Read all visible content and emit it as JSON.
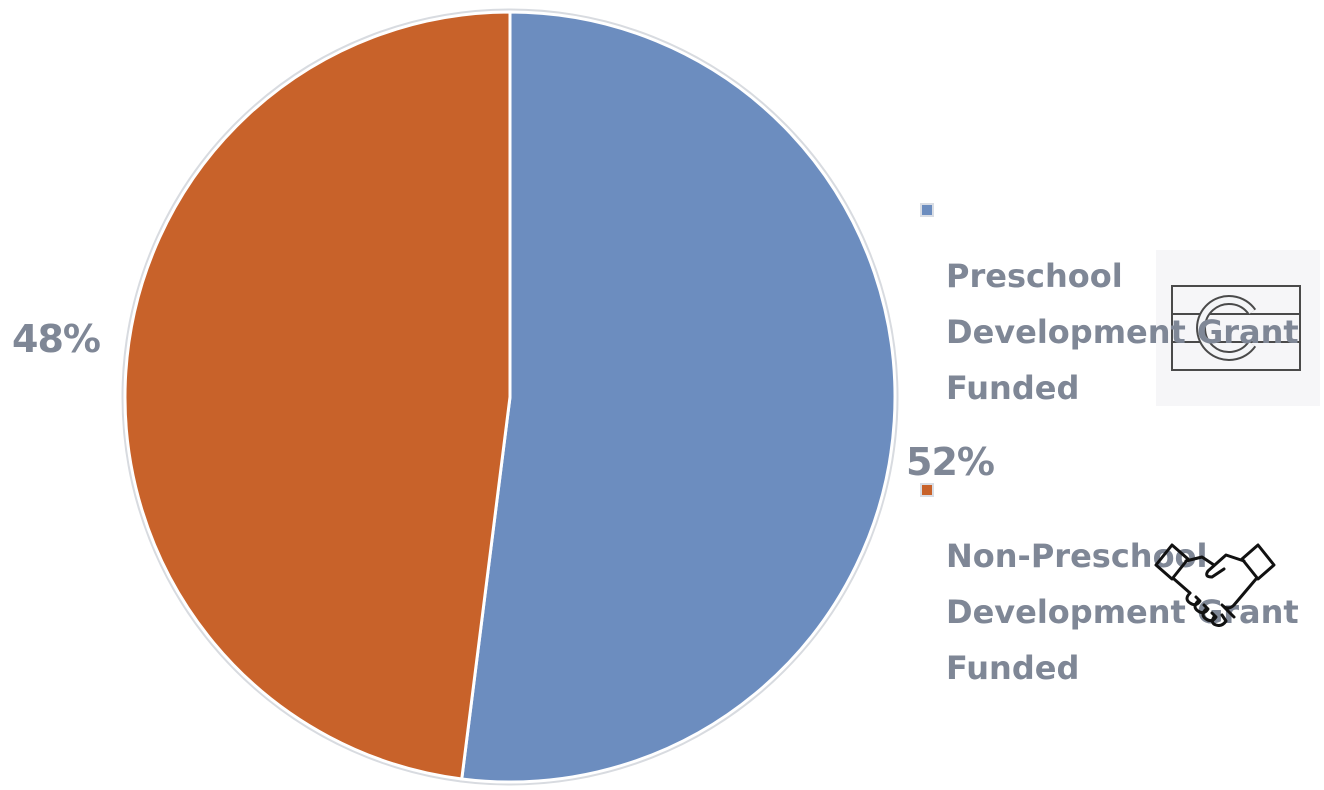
{
  "chart_data": {
    "type": "pie",
    "title": "",
    "series": [
      {
        "name": "Preschool Development Grant Funded",
        "value": 52,
        "label": "52%",
        "color": "#6c8dbf"
      },
      {
        "name": "Non-Preschool Development Grant Funded",
        "value": 48,
        "label": "48%",
        "color": "#c8622a"
      }
    ],
    "start_angle": "12 o'clock",
    "direction": "clockwise",
    "legend_position": "right"
  },
  "legend": {
    "entries": [
      {
        "text": "Preschool\nDevelopment Grant\nFunded"
      },
      {
        "text": "Non-Preschool\nDevelopment Grant\nFunded"
      }
    ]
  },
  "icons": {
    "logo": "colorado-flag-outline-icon",
    "decoration": "handshake-icon"
  }
}
